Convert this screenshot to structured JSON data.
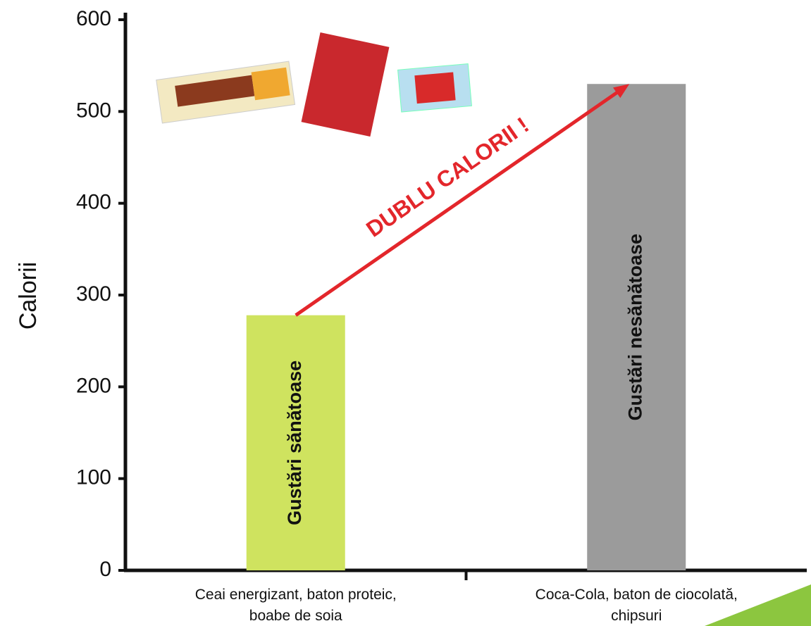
{
  "chart_data": {
    "type": "bar",
    "y_label": "Calorii",
    "categories": [
      "Ceai energizant, baton proteic, boabe de soia",
      "Coca-Cola, baton de ciocolată, chipsuri"
    ],
    "bar_labels": [
      "Gustări sănătoase",
      "Gustări nesănătoase"
    ],
    "values": [
      278,
      530
    ],
    "colors": [
      "#cfe35f",
      "#9b9b9b"
    ],
    "annotation": "DUBLU CALORII !",
    "annotation_color": "#e3262b",
    "ylim": [
      0,
      600
    ],
    "yticks": [
      0,
      100,
      200,
      300,
      400,
      500,
      600
    ]
  }
}
